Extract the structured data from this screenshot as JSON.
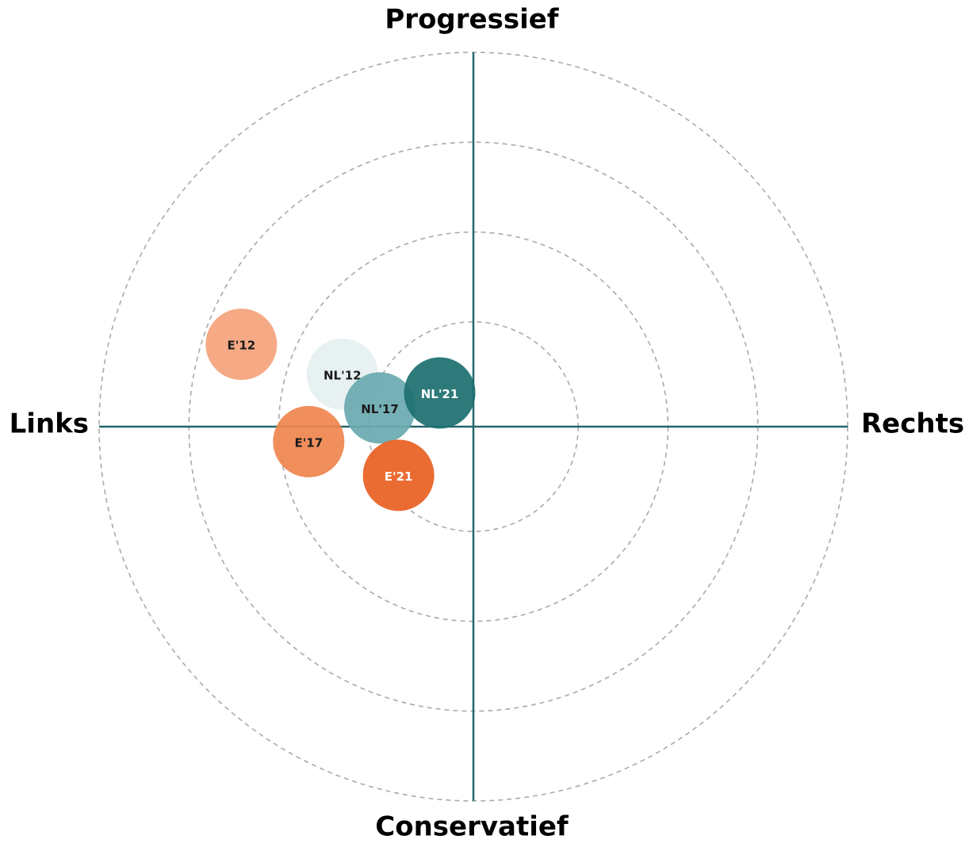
{
  "chart_data": {
    "type": "scatter",
    "axis_labels": {
      "top": "Progressief",
      "bottom": "Conservatief",
      "left": "Links",
      "right": "Rechts"
    },
    "xlim": [
      -10,
      10
    ],
    "ylim": [
      -10,
      10
    ],
    "rings": [
      2.8,
      5.2,
      7.6,
      10
    ],
    "axis_color": "#23676b",
    "ring_color": "#aaaaaa",
    "series": [
      {
        "name": "E'12",
        "color": "#f4a47c",
        "label_color": "#1a1a1a",
        "x": [
          -6.2
        ],
        "values": [
          2.2
        ]
      },
      {
        "name": "NL'12",
        "color": "#e6f0f0",
        "label_color": "#1a1a1a",
        "x": [
          -3.5
        ],
        "values": [
          1.4
        ]
      },
      {
        "name": "E'17",
        "color": "#ef8550",
        "label_color": "#1a1a1a",
        "x": [
          -4.4
        ],
        "values": [
          -0.4
        ]
      },
      {
        "name": "NL'17",
        "color": "#6aaab0",
        "label_color": "#1a1a1a",
        "x": [
          -2.5
        ],
        "values": [
          0.5
        ]
      },
      {
        "name": "NL'21",
        "color": "#1e7070",
        "label_color": "#ffffff",
        "x": [
          -0.9
        ],
        "values": [
          0.9
        ]
      },
      {
        "name": "E'21",
        "color": "#ea6124",
        "label_color": "#ffffff",
        "x": [
          -2.0
        ],
        "values": [
          -1.3
        ]
      }
    ]
  }
}
